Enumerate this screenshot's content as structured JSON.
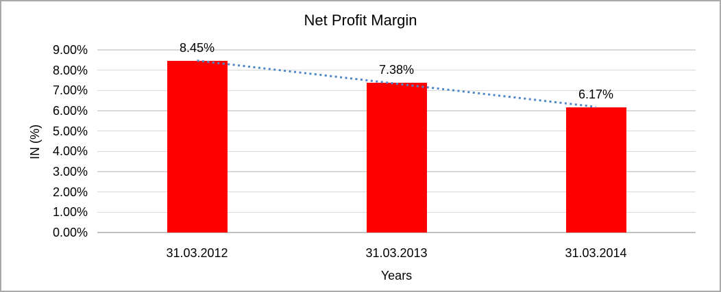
{
  "chart_data": {
    "type": "bar",
    "title": "Net Profit Margin",
    "xlabel": "Years",
    "ylabel": "IN (%)",
    "categories": [
      "31.03.2012",
      "31.03.2013",
      "31.03.2014"
    ],
    "values": [
      8.45,
      7.38,
      6.17
    ],
    "data_labels": [
      "8.45%",
      "7.38%",
      "6.17%"
    ],
    "ylim": [
      0,
      9
    ],
    "ytick_step": 1,
    "ytick_labels_top_to_bottom": [
      "9.00%",
      "8.00%",
      "7.00%",
      "6.00%",
      "5.00%",
      "4.00%",
      "3.00%",
      "2.00%",
      "1.00%",
      "0.00%"
    ],
    "grid": "horizontal",
    "legend": "none",
    "bar_color": "#FF0000",
    "gridline_color": "#D9D9D9",
    "axis_line_color": "#C0C0C0",
    "text_color": "#000000",
    "trendline": {
      "type": "linear",
      "style": "dotted",
      "color": "#4E86C8"
    }
  }
}
